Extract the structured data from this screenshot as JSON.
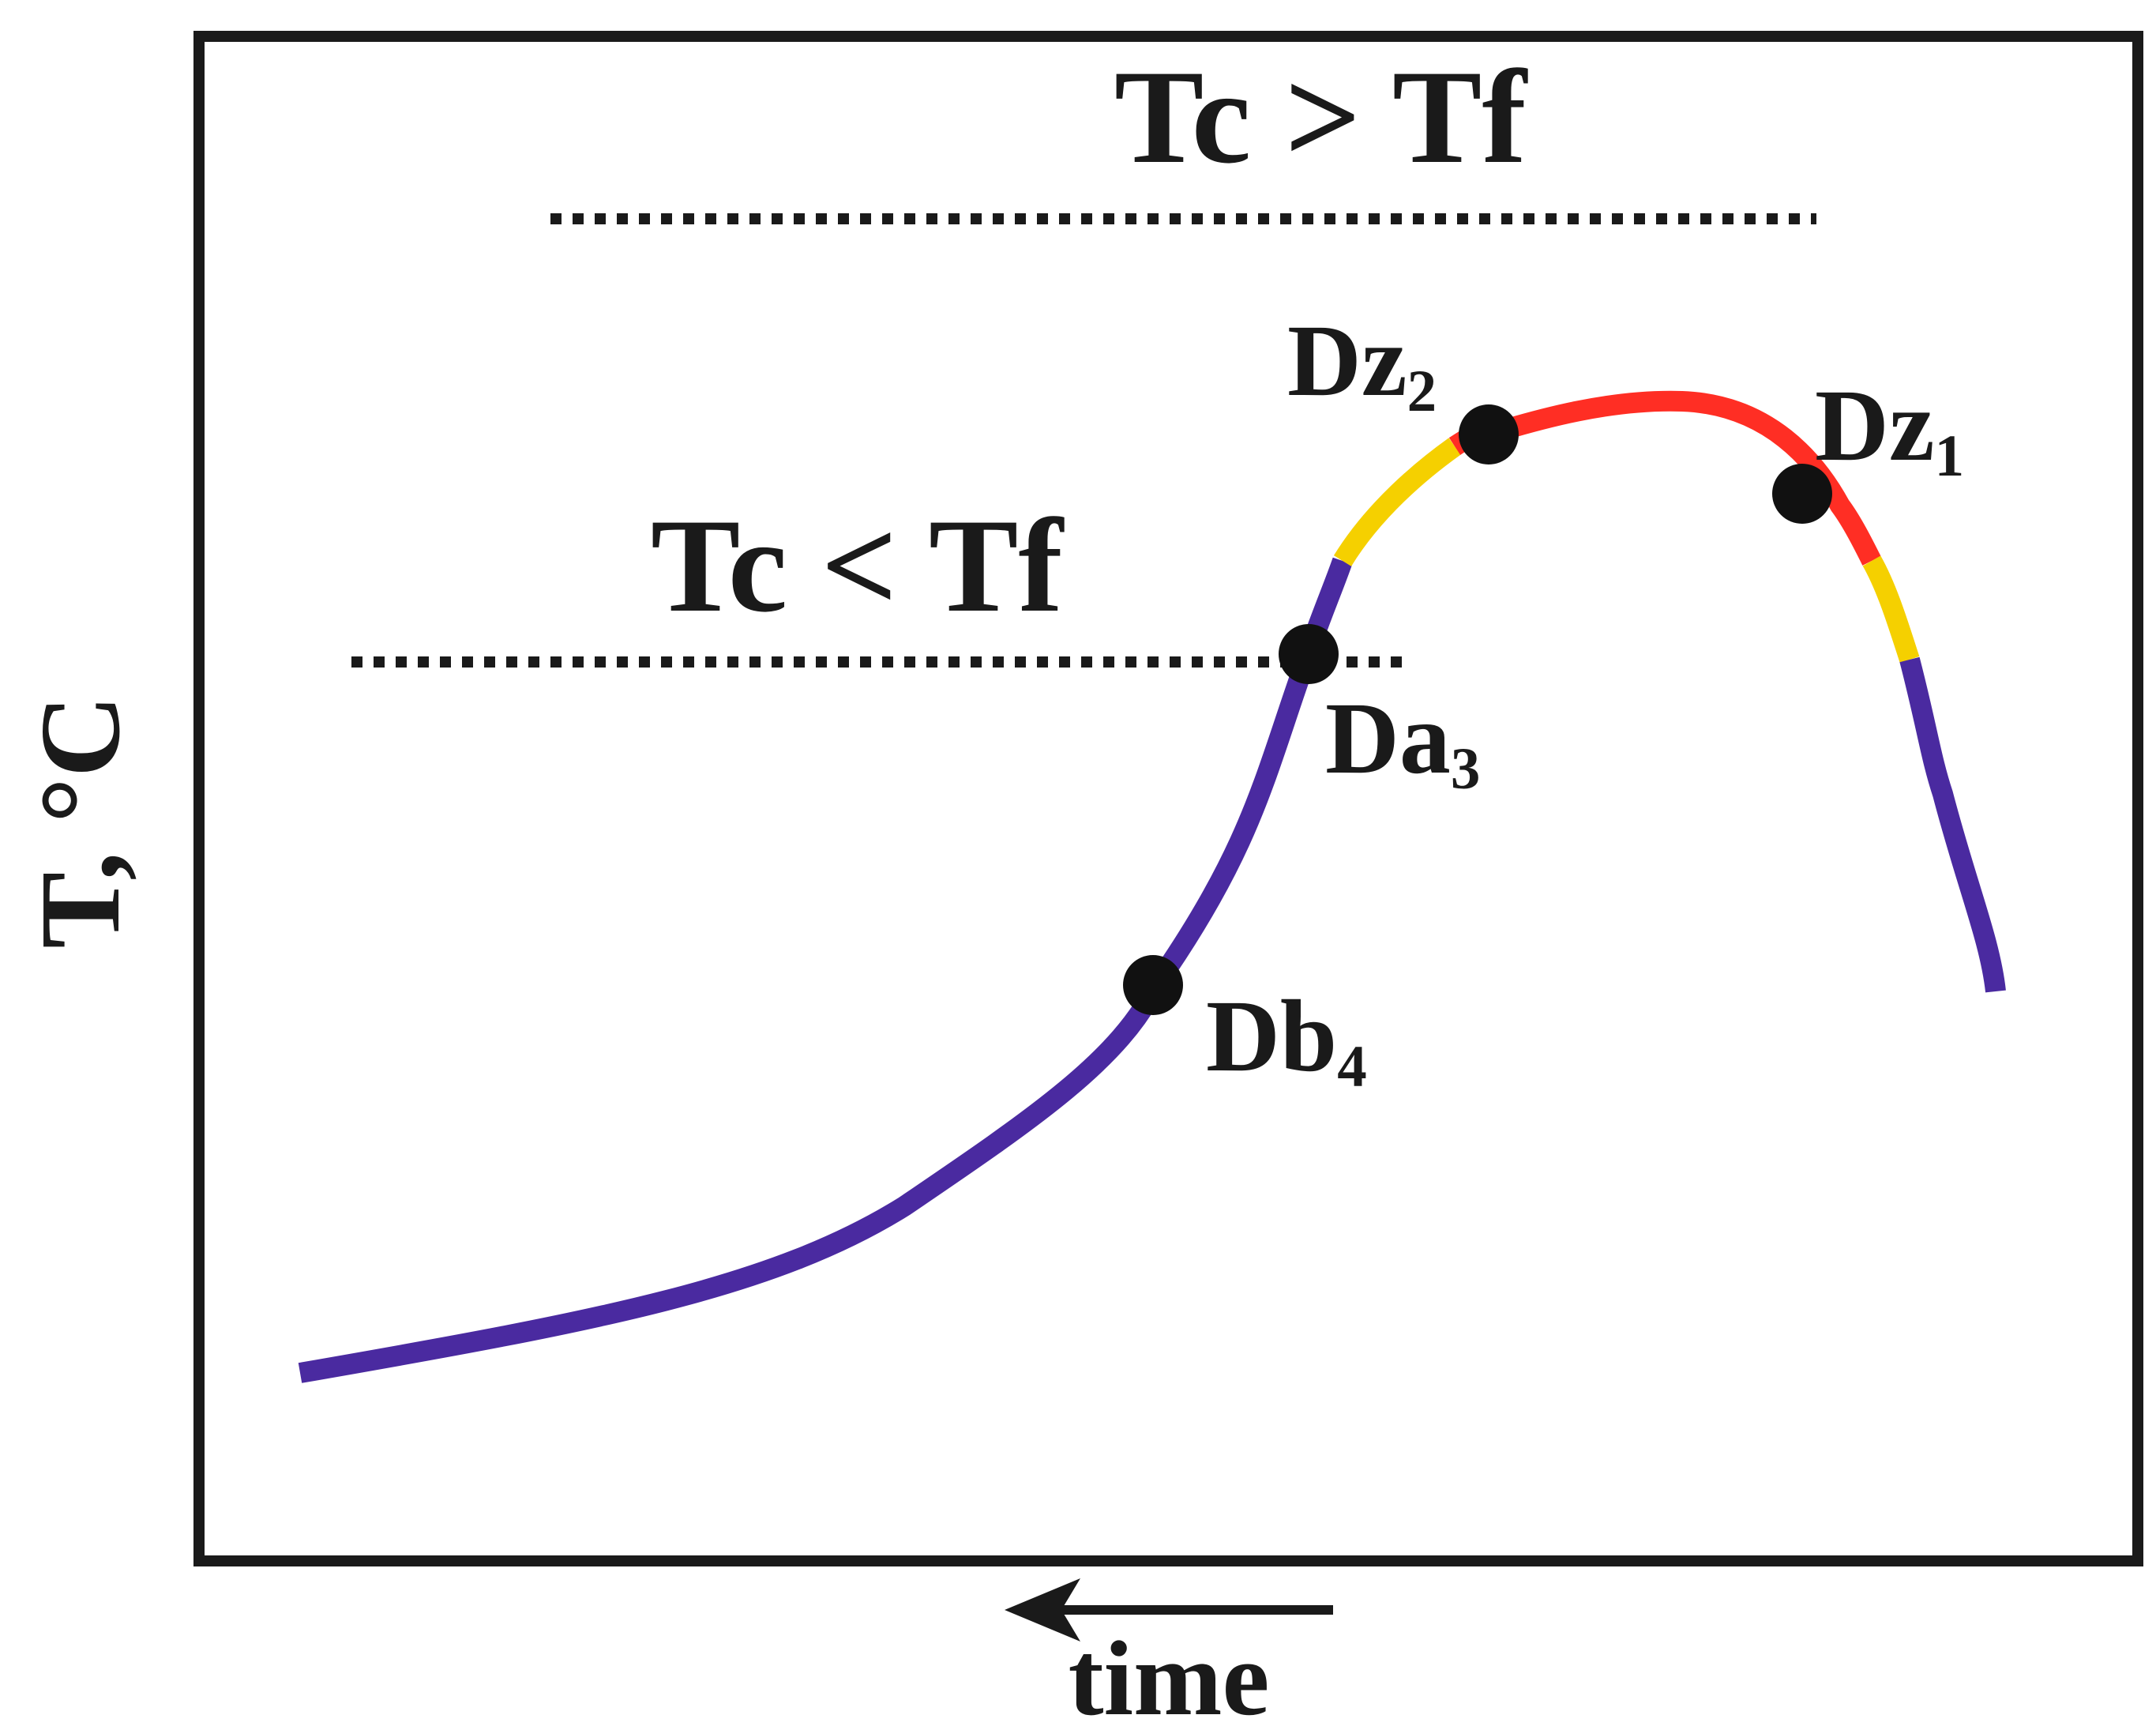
{
  "labels": {
    "upper_threshold": "Tc > Tf",
    "lower_threshold": "Tc < Tf",
    "y_axis": "T, °C",
    "x_axis": "time"
  },
  "points": [
    {
      "id": "dz2",
      "base": "Dz",
      "sub": "2"
    },
    {
      "id": "dz1",
      "base": "Dz",
      "sub": "1"
    },
    {
      "id": "da3",
      "base": "Da",
      "sub": "3"
    },
    {
      "id": "db4",
      "base": "Db",
      "sub": "4"
    }
  ],
  "colors": {
    "curve_low": "#4a2aa0",
    "curve_mid": "#f5d000",
    "curve_high": "#ff2e24",
    "frame": "#1a1a1a",
    "point": "#111111"
  }
}
